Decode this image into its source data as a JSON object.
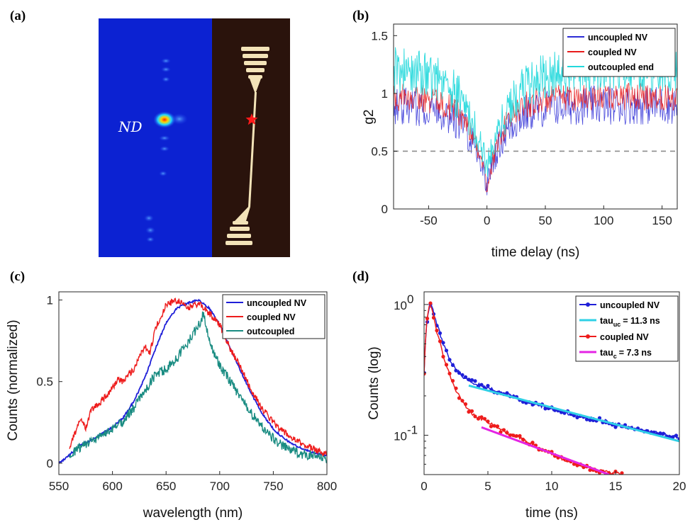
{
  "panels": {
    "a": {
      "label": "(a)",
      "annotation": "ND",
      "colors": {
        "left_background": "#0c22d2",
        "right_background": "#2a130c",
        "device": "#f3e3b8",
        "marker": "#ff1a1a"
      }
    },
    "b": {
      "label": "(b)"
    },
    "c": {
      "label": "(c)"
    },
    "d": {
      "label": "(d)"
    }
  },
  "chart_data": [
    {
      "id": "b",
      "type": "line",
      "xlabel": "time delay (ns)",
      "ylabel": "g2",
      "xlim": [
        -80,
        163
      ],
      "ylim": [
        0,
        1.6
      ],
      "xticks": [
        -50,
        0,
        50,
        100,
        150
      ],
      "yticks": [
        0,
        0.5,
        1,
        1.5
      ],
      "reference_line": {
        "y": 0.5,
        "style": "dashed"
      },
      "legend_position": "top-right",
      "series": [
        {
          "name": "uncoupled NV",
          "color": "#2c2cd6",
          "dip_min": 0.2,
          "plateau": 0.9,
          "tau_ns": 15,
          "noise": 0.17
        },
        {
          "name": "coupled NV",
          "color": "#e81b1b",
          "dip_min": 0.18,
          "plateau": 0.97,
          "tau_ns": 14,
          "noise": 0.12
        },
        {
          "name": "outcoupled end",
          "color": "#22d8dc",
          "dip_min": 0.35,
          "plateau": 1.22,
          "tau_ns": 20,
          "noise": 0.2
        }
      ]
    },
    {
      "id": "c",
      "type": "line",
      "xlabel": "wavelength (nm)",
      "ylabel": "Counts (normalized)",
      "xlim": [
        550,
        800
      ],
      "ylim": [
        -0.07,
        1.05
      ],
      "xticks": [
        550,
        600,
        650,
        700,
        750,
        800
      ],
      "yticks": [
        0,
        0.5,
        1
      ],
      "legend_position": "top-right",
      "series": [
        {
          "name": "uncoupled NV",
          "color": "#1f1fd8",
          "x": [
            550,
            560,
            570,
            580,
            590,
            600,
            610,
            620,
            630,
            640,
            650,
            660,
            670,
            680,
            690,
            700,
            710,
            720,
            730,
            740,
            750,
            760,
            770,
            780,
            790,
            800
          ],
          "y": [
            0.0,
            0.05,
            0.11,
            0.14,
            0.18,
            0.22,
            0.28,
            0.38,
            0.52,
            0.7,
            0.86,
            0.95,
            0.98,
            1.0,
            0.95,
            0.85,
            0.7,
            0.56,
            0.42,
            0.3,
            0.21,
            0.15,
            0.11,
            0.08,
            0.06,
            0.05
          ]
        },
        {
          "name": "coupled NV",
          "color": "#ee1c1c",
          "x": [
            560,
            565,
            570,
            575,
            580,
            590,
            600,
            605,
            610,
            620,
            630,
            635,
            640,
            650,
            660,
            670,
            680,
            690,
            700,
            710,
            720,
            730,
            740,
            750,
            760,
            770,
            780,
            790,
            800
          ],
          "y": [
            0.1,
            0.18,
            0.26,
            0.22,
            0.32,
            0.38,
            0.46,
            0.52,
            0.5,
            0.58,
            0.72,
            0.68,
            0.82,
            0.97,
            1.0,
            0.95,
            0.98,
            0.92,
            0.85,
            0.7,
            0.58,
            0.44,
            0.33,
            0.25,
            0.19,
            0.14,
            0.11,
            0.08,
            0.06
          ]
        },
        {
          "name": "outcoupled",
          "color": "#1a8c82",
          "x": [
            560,
            570,
            580,
            590,
            600,
            610,
            620,
            630,
            640,
            650,
            660,
            670,
            680,
            685,
            690,
            700,
            710,
            720,
            730,
            740,
            750,
            760,
            770,
            780,
            790,
            800
          ],
          "y": [
            0.04,
            0.1,
            0.14,
            0.16,
            0.21,
            0.26,
            0.34,
            0.44,
            0.54,
            0.58,
            0.64,
            0.74,
            0.84,
            0.92,
            0.75,
            0.6,
            0.5,
            0.4,
            0.3,
            0.22,
            0.15,
            0.1,
            0.07,
            0.05,
            0.04,
            0.03
          ]
        }
      ]
    },
    {
      "id": "d",
      "type": "scatter",
      "xlabel": "time (ns)",
      "ylabel": "Counts (log)",
      "xlim": [
        0,
        20
      ],
      "ylim": [
        0.05,
        1.25
      ],
      "yscale": "log",
      "xticks": [
        0,
        5,
        10,
        15,
        20
      ],
      "yticks": [
        {
          "value": 1,
          "base": "10",
          "exp": "0"
        },
        {
          "value": 0.1,
          "base": "10",
          "exp": "-1"
        }
      ],
      "legend_position": "top-right",
      "series": [
        {
          "name": "uncoupled NV",
          "color": "#1f1fd8",
          "marker": "dot",
          "x": [
            0,
            0.2,
            0.4,
            0.5,
            0.7,
            1.0,
            1.5,
            2.0,
            2.5,
            3.0,
            4,
            5,
            6,
            7,
            8,
            9,
            10,
            11,
            12,
            13,
            14,
            15,
            16,
            17,
            18,
            19,
            20
          ],
          "y": [
            0.3,
            0.7,
            0.95,
            1.0,
            0.9,
            0.7,
            0.5,
            0.38,
            0.32,
            0.28,
            0.25,
            0.23,
            0.21,
            0.2,
            0.18,
            0.17,
            0.16,
            0.15,
            0.14,
            0.135,
            0.13,
            0.12,
            0.115,
            0.11,
            0.105,
            0.1,
            0.095
          ]
        },
        {
          "name": "tau_uc = 11.3 ns",
          "label_main": "tau",
          "label_sub": "uc",
          "label_rest": "= 11.3 ns",
          "color": "#2fd0e6",
          "marker": "line",
          "x": [
            3.5,
            20
          ],
          "y": [
            0.24,
            0.09
          ]
        },
        {
          "name": "coupled NV",
          "color": "#ee1c1c",
          "marker": "dot",
          "x": [
            0,
            0.2,
            0.4,
            0.5,
            0.7,
            1.0,
            1.5,
            2.0,
            2.5,
            3.0,
            3.5,
            4,
            5,
            6,
            7,
            8,
            9,
            10,
            11,
            12,
            13,
            14,
            14.5,
            15.5
          ],
          "y": [
            0.3,
            0.7,
            0.95,
            1.0,
            0.85,
            0.62,
            0.4,
            0.29,
            0.22,
            0.18,
            0.155,
            0.14,
            0.125,
            0.11,
            0.1,
            0.09,
            0.08,
            0.072,
            0.065,
            0.06,
            0.056,
            0.053,
            0.052,
            0.05
          ]
        },
        {
          "name": "tau_c = 7.3 ns",
          "label_main": "tau",
          "label_sub": "c",
          "label_rest": "= 7.3 ns",
          "color": "#e424e4",
          "marker": "line",
          "x": [
            4.5,
            14.5
          ],
          "y": [
            0.115,
            0.05
          ]
        }
      ]
    }
  ]
}
